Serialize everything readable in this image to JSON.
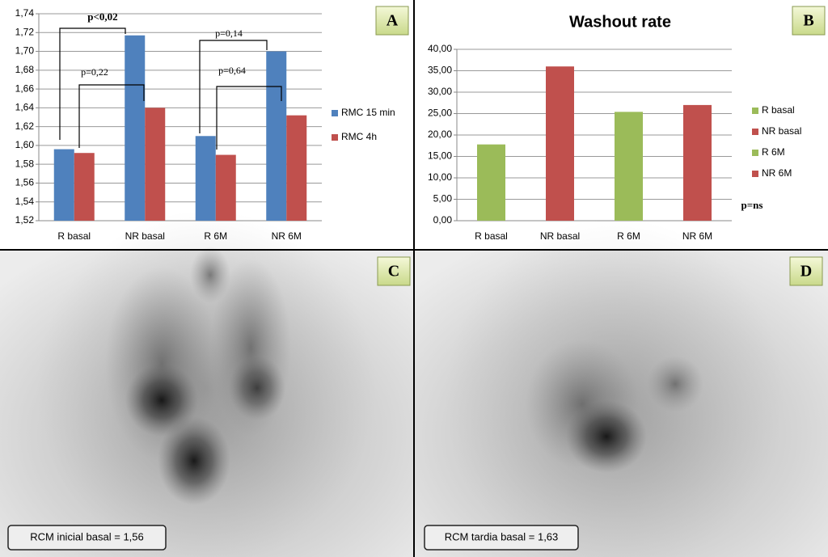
{
  "chart_data": [
    {
      "type": "bar",
      "categories": [
        "R basal",
        "NR basal",
        "R 6M",
        "NR 6M"
      ],
      "series": [
        {
          "name": "RMC 15 min",
          "color": "#4f81bd",
          "values": [
            1.596,
            1.717,
            1.61,
            1.7
          ]
        },
        {
          "name": "RMC 4h",
          "color": "#c0504d",
          "values": [
            1.592,
            1.64,
            1.59,
            1.632
          ]
        }
      ],
      "ylim": [
        1.52,
        1.74
      ],
      "yticks": [
        {
          "value": 1.52,
          "label": "1,52"
        },
        {
          "value": 1.54,
          "label": "1,54"
        },
        {
          "value": 1.56,
          "label": "1,56"
        },
        {
          "value": 1.58,
          "label": "1,58"
        },
        {
          "value": 1.6,
          "label": "1,60"
        },
        {
          "value": 1.62,
          "label": "1,62"
        },
        {
          "value": 1.64,
          "label": "1,64"
        },
        {
          "value": 1.66,
          "label": "1,66"
        },
        {
          "value": 1.68,
          "label": "1,68"
        },
        {
          "value": 1.7,
          "label": "1,70"
        },
        {
          "value": 1.72,
          "label": "1,72"
        },
        {
          "value": 1.74,
          "label": "1,74"
        }
      ],
      "grid": true,
      "legend": "right",
      "annotations": [
        "p<0,02",
        "p=0,22",
        "p=0,14",
        "p=0,64"
      ]
    },
    {
      "type": "colored-bar",
      "title": "Washout rate",
      "categories": [
        "R basal",
        "NR basal",
        "R 6M",
        "NR 6M"
      ],
      "values": [
        17.8,
        36.0,
        25.4,
        27.0
      ],
      "colors": [
        "#9bbb59",
        "#c0504d",
        "#9bbb59",
        "#c0504d"
      ],
      "ylim": [
        0,
        40
      ],
      "yticks": [
        {
          "value": 0,
          "label": "0,00"
        },
        {
          "value": 5,
          "label": "5,00"
        },
        {
          "value": 10,
          "label": "10,00"
        },
        {
          "value": 15,
          "label": "15,00"
        },
        {
          "value": 20,
          "label": "20,00"
        },
        {
          "value": 25,
          "label": "25,00"
        },
        {
          "value": 30,
          "label": "30,00"
        },
        {
          "value": 35,
          "label": "35,00"
        },
        {
          "value": 40,
          "label": "40,00"
        }
      ],
      "grid": true,
      "legend": "right",
      "annotations": [
        "p=ns"
      ]
    }
  ],
  "panel_labels": [
    "A",
    "B",
    "C",
    "D"
  ],
  "image_captions": [
    "RCM inicial basal = 1,56",
    "RCM tardia basal = 1,63"
  ]
}
